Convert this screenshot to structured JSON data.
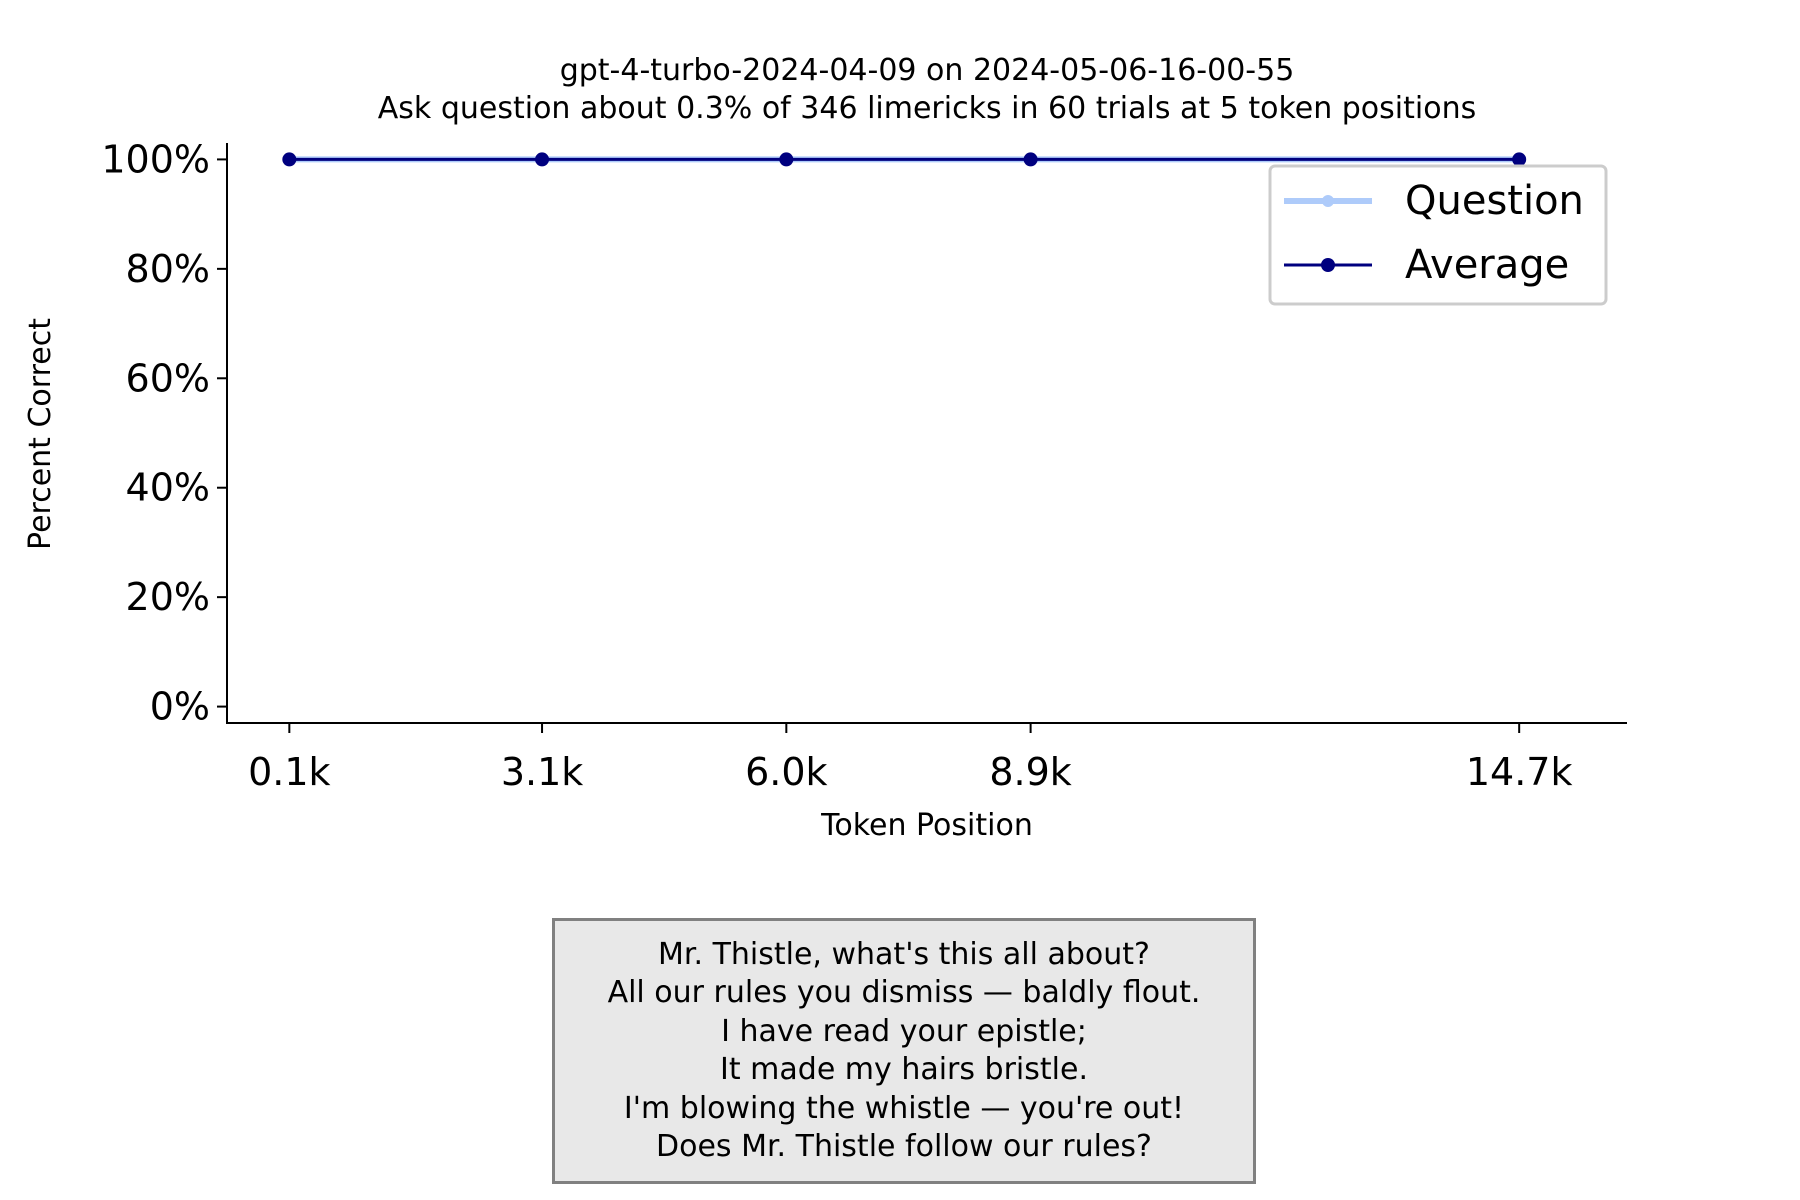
{
  "colors": {
    "question": "#aecbfa",
    "average": "#00007f",
    "axis": "#000000",
    "legend_border": "#cccccc",
    "note_bg": "#e8e8e8",
    "note_border": "#808080"
  },
  "chart_data": {
    "type": "line",
    "title": "gpt-4-turbo-2024-04-09 on 2024-05-06-16-00-55",
    "subtitle": "Ask question about 0.3% of 346 limericks in 60 trials at 5 token positions",
    "xlabel": "Token Position",
    "ylabel": "Percent Correct",
    "x": [
      0.1,
      3.1,
      6.0,
      8.9,
      14.7
    ],
    "x_tick_labels": [
      "0.1k",
      "3.1k",
      "6.0k",
      "8.9k",
      "14.7k"
    ],
    "y_ticks": [
      0,
      20,
      40,
      60,
      80,
      100
    ],
    "y_tick_labels": [
      "0%",
      "20%",
      "40%",
      "60%",
      "80%",
      "100%"
    ],
    "xlim": [
      -0.64,
      15.98
    ],
    "ylim": [
      -3,
      103
    ],
    "grid": false,
    "legend_position": "top-right",
    "series": [
      {
        "name": "Question",
        "values": [
          100,
          100,
          100,
          100,
          100
        ],
        "color": "#aecbfa"
      },
      {
        "name": "Average",
        "values": [
          100,
          100,
          100,
          100,
          100
        ],
        "color": "#00007f"
      }
    ]
  },
  "note": {
    "lines": [
      "Mr. Thistle, what's this all about?",
      "All our rules you dismiss — baldly flout.",
      "I have read your epistle;",
      "It made my hairs bristle.",
      "I'm blowing the whistle — you're out!",
      "Does Mr. Thistle follow our rules?"
    ]
  }
}
